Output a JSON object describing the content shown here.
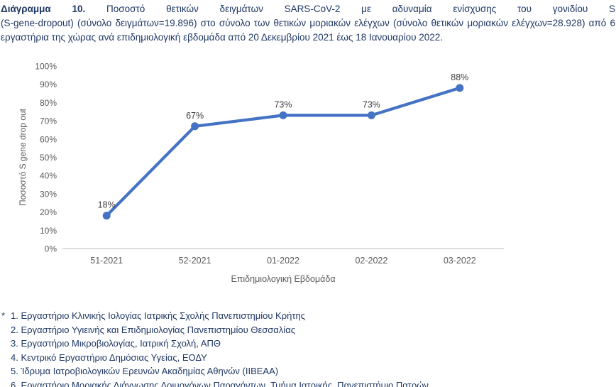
{
  "caption": {
    "bold": "Διάγραμμα 10.",
    "line1_rest": "Ποσοστό θετικών δειγμάτων SARS-CoV-2 με αδυναμία ενίσχυσης του γονιδίου S",
    "line2": "(S-gene-dropout) (σύνολο δειγμάτων=19.896) στο σύνολο των θετικών μοριακών ελέγχων (σύνολο θετικών μοριακών ελέγχων=28.928) από 6",
    "line3": "εργαστήρια της χώρας ανά επιδημιολογική εβδομάδα από 20 Δεκεμβρίου 2021 έως 18 Ιανουαρίου 2022."
  },
  "chart_data": {
    "type": "line",
    "title": "",
    "categories": [
      "51-2021",
      "52-2021",
      "01-2022",
      "02-2022",
      "03-2022"
    ],
    "values": [
      18,
      67,
      73,
      73,
      88
    ],
    "data_labels": [
      "18%",
      "67%",
      "73%",
      "73%",
      "88%"
    ],
    "xlabel": "Επιδημιολογική Εβδομάδα",
    "ylabel": "Ποσοστό S gene drop out",
    "ylim": [
      0,
      100
    ],
    "ytick_step": 10,
    "ytick_labels": [
      "0%",
      "10%",
      "20%",
      "30%",
      "40%",
      "50%",
      "60%",
      "70%",
      "80%",
      "90%",
      "100%"
    ],
    "grid": false,
    "legend": "none",
    "line_color": "#4472C4",
    "marker": "circle"
  },
  "footnotes": {
    "marker": "*",
    "items": [
      "1. Εργαστήριο Κλινικής Ιολογίας Ιατρικής Σχολής Πανεπιστημίου Κρήτης",
      "2. Εργαστήριο Υγιεινής και Επιδημιολογίας Πανεπιστημίου Θεσσαλίας",
      "3. Εργαστήριο Μικροβιολογίας, Ιατρική Σχολή, ΑΠΘ",
      "4. Κεντρικό Εργαστήριο Δημόσιας Υγείας, ΕΟΔΥ",
      "5. Ίδρυμα Ιατροβιολογικών Ερευνών Ακαδημίας Αθηνών (ΙΙΒΕΑΑ)",
      "6. Εργαστήριο Μοριακής Διάγνωσης Λοιμογόνων Παραγόντων, Τμήμα Ιατρικής, Πανεπιστήμιο Πατρών"
    ]
  },
  "colors": {
    "accent_line": "#4472C4",
    "caption_text": "#1F3864",
    "axis_text": "#595959",
    "data_label_text": "#404040",
    "axis_line": "#C9C9C9"
  }
}
